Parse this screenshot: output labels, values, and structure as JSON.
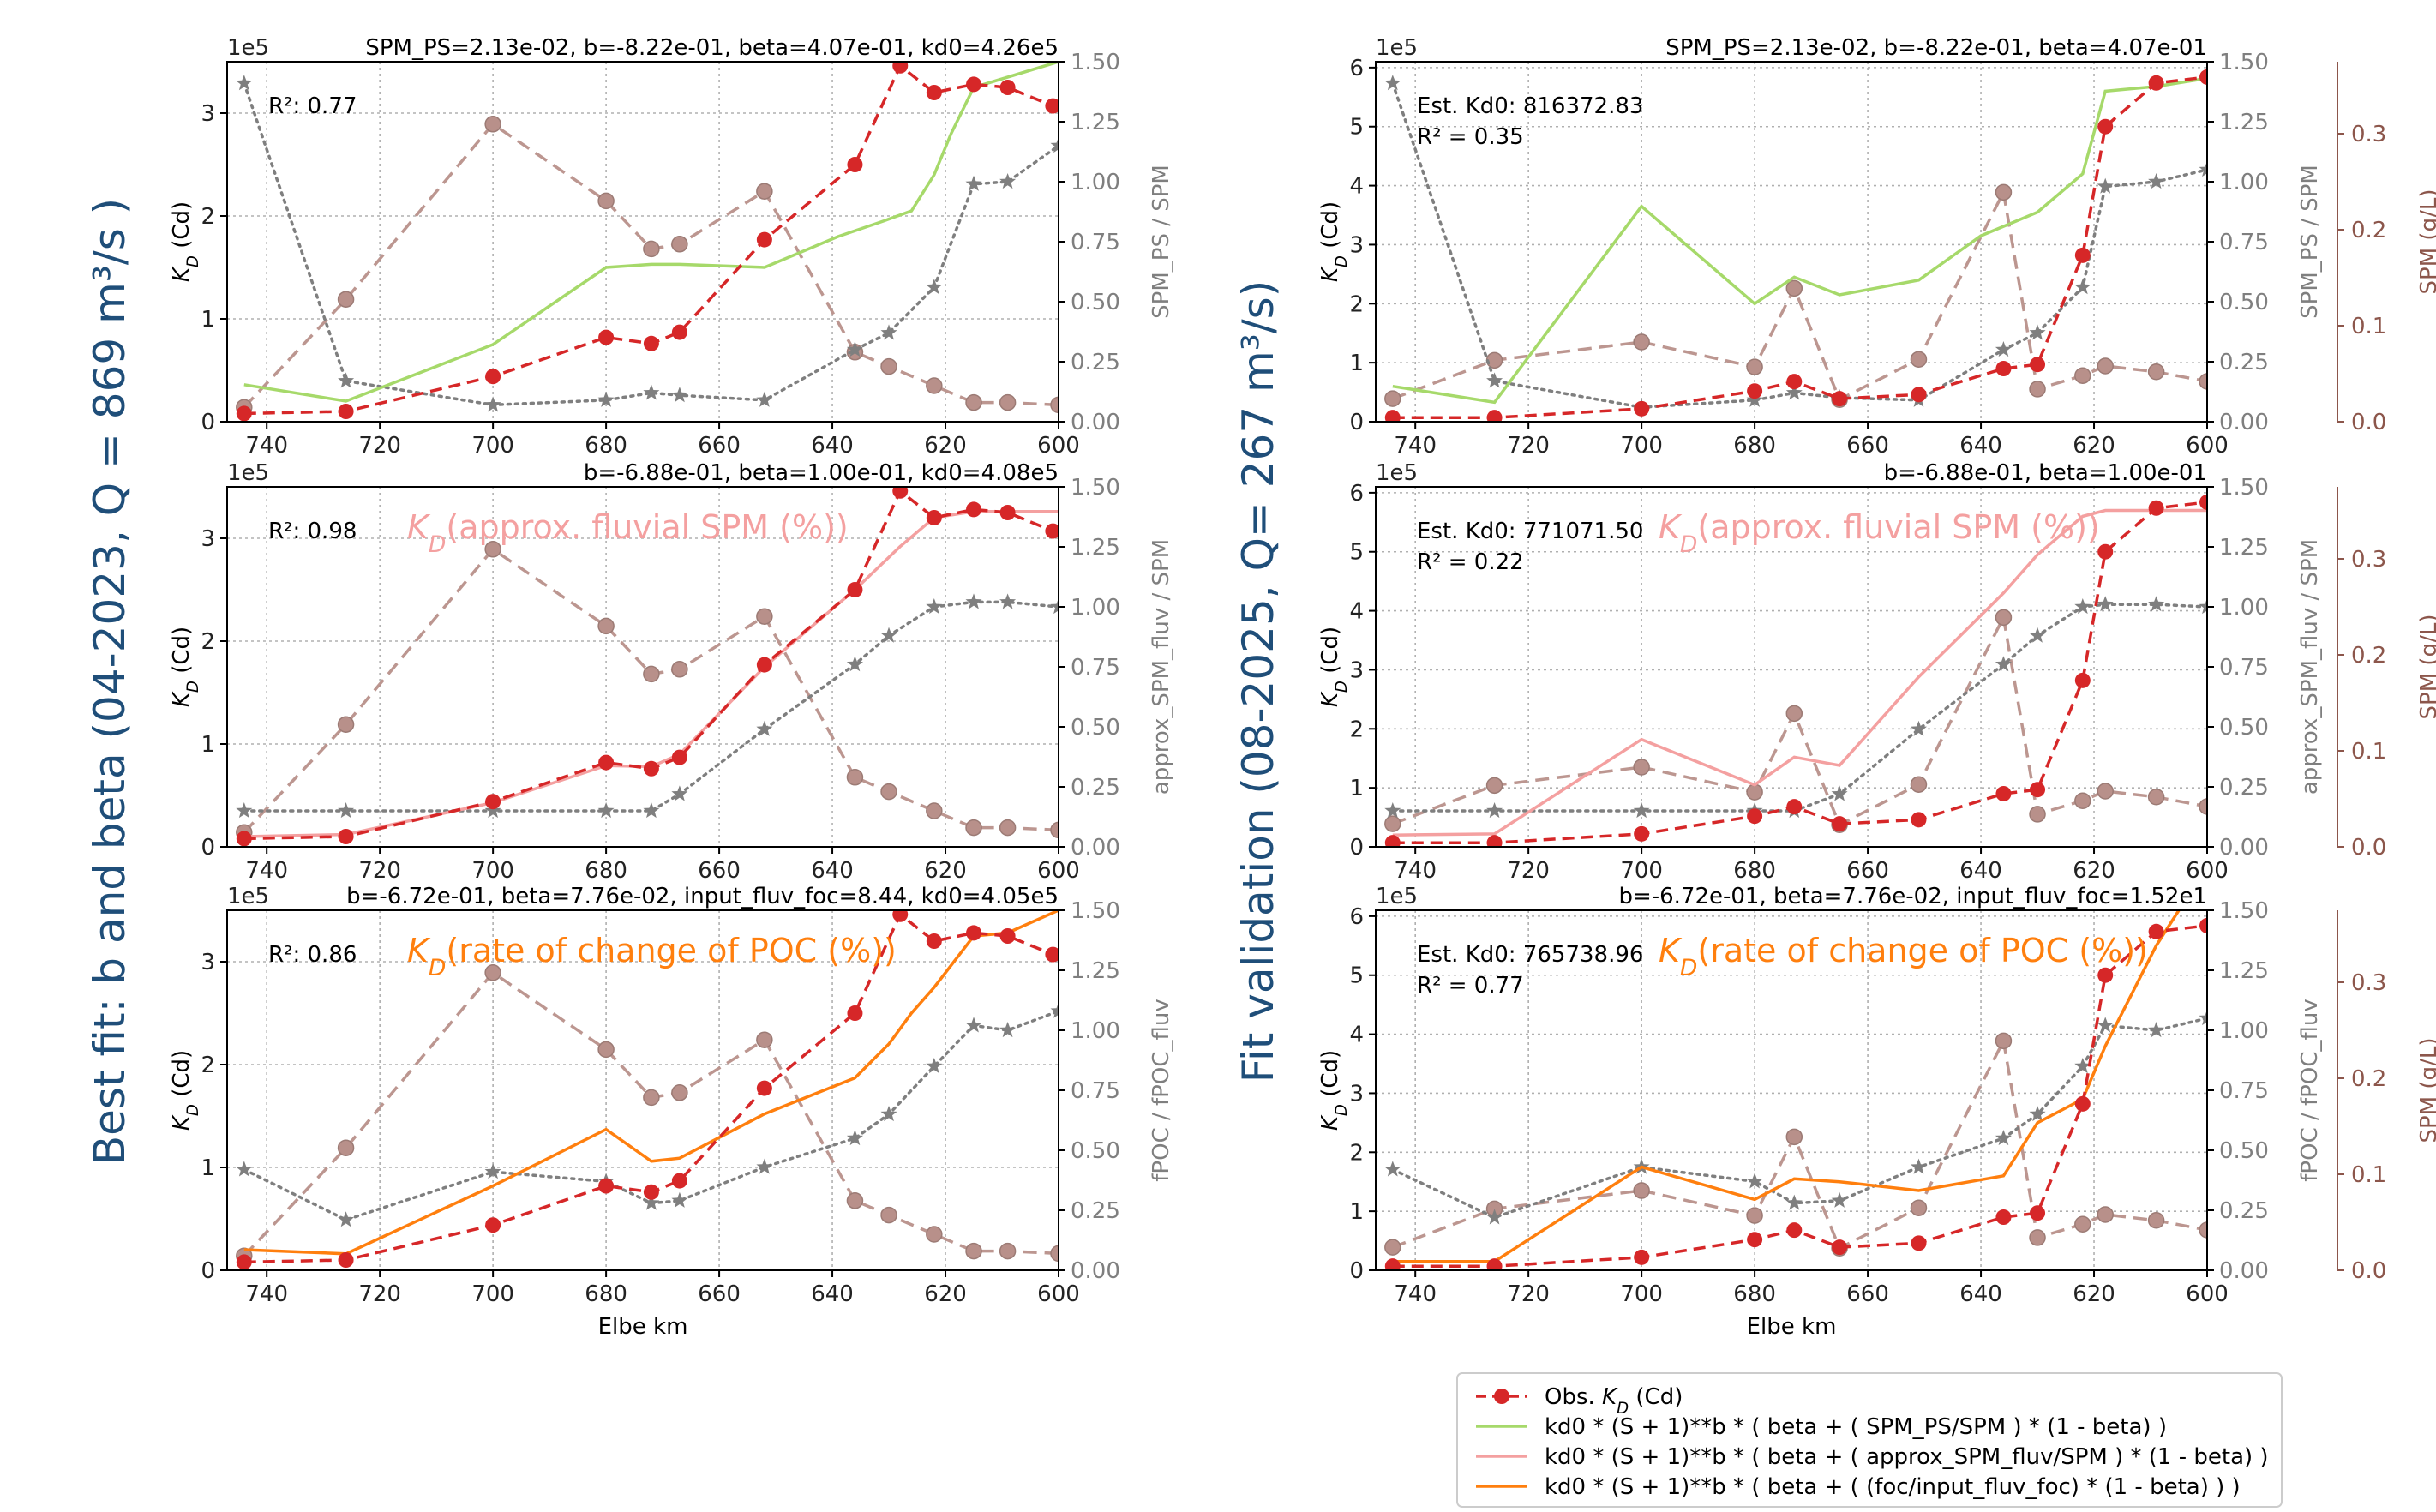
{
  "row_titles": {
    "left": "Best fit: b and beta (04-2023, Q = 869 m³/s )",
    "right": "Fit validation (08-2025, Q= 267 m³/s)"
  },
  "colors": {
    "obs": "#d62728",
    "ps": "#a6d96a",
    "fluv": "#f4a0a0",
    "poc": "#ff7f0e",
    "ratio": "#7f7f7f",
    "spm": "#b8908a",
    "spm_axis": "#8c564b"
  },
  "legend": {
    "entries": [
      {
        "key": "obs",
        "label": "Obs. K_D (Cd)"
      },
      {
        "key": "ps",
        "label": "kd0 * (S + 1)**b * ( beta + ( SPM_PS/SPM ) * (1 - beta) )"
      },
      {
        "key": "fluv",
        "label": "kd0 * (S + 1)**b * ( beta + ( approx_SPM_fluv/SPM ) * (1 - beta) )"
      },
      {
        "key": "poc",
        "label": "kd0 * (S + 1)**b * ( beta + ( (foc/input_fluv_foc) * (1 - beta) ) )"
      }
    ]
  },
  "chart_data": [
    {
      "id": "l1",
      "type": "line",
      "col": 0,
      "row": 0,
      "title": "SPM_PS=2.13e-02, b=-8.22e-01, beta=4.07e-01, kd0=4.26e5",
      "annotation": "R²: 0.77",
      "overlay": "",
      "xlabel": "",
      "ylabel": "K_D (Cd)",
      "y_multiplier": "1e5",
      "y2label": "SPM_PS / SPM",
      "y3label": "",
      "xlim": [
        747,
        600
      ],
      "ylim": [
        0,
        3.5
      ],
      "y2lim": [
        0,
        1.5
      ],
      "y3lim": null,
      "x_ticks": [
        740,
        720,
        700,
        680,
        660,
        640,
        620,
        600
      ],
      "y_ticks": [
        0,
        1,
        2,
        3
      ],
      "y2_ticks": [
        "0.00",
        "0.25",
        "0.50",
        "0.75",
        "1.00",
        "1.25",
        "1.50"
      ],
      "y3_ticks": [],
      "obs": {
        "x": [
          744,
          726,
          700,
          680,
          672,
          667,
          652,
          636,
          628,
          622,
          615,
          609,
          601
        ],
        "y": [
          0.08,
          0.1,
          0.44,
          0.82,
          0.76,
          0.87,
          1.77,
          2.5,
          3.46,
          3.2,
          3.28,
          3.25,
          3.07
        ]
      },
      "model": {
        "key": "ps",
        "x": [
          744,
          726,
          700,
          680,
          672,
          667,
          652,
          639,
          631,
          626,
          622,
          619,
          615,
          600
        ],
        "y": [
          0.36,
          0.2,
          0.75,
          1.5,
          1.53,
          1.53,
          1.5,
          1.8,
          1.95,
          2.05,
          2.4,
          2.8,
          3.25,
          3.5
        ]
      },
      "ratio": {
        "x": [
          744,
          726,
          700,
          680,
          672,
          667,
          652,
          636,
          630,
          622,
          615,
          609,
          600
        ],
        "y": [
          1.41,
          0.17,
          0.07,
          0.09,
          0.12,
          0.11,
          0.09,
          0.3,
          0.37,
          0.56,
          0.99,
          1.0,
          1.15
        ]
      },
      "spm": {
        "x": [
          744,
          726,
          700,
          680,
          672,
          667,
          652,
          636,
          630,
          622,
          615,
          609,
          600
        ],
        "y": [
          0.06,
          0.51,
          1.24,
          0.92,
          0.72,
          0.74,
          0.96,
          0.29,
          0.23,
          0.15,
          0.08,
          0.08,
          0.07
        ]
      }
    },
    {
      "id": "l2",
      "type": "line",
      "col": 0,
      "row": 1,
      "title": "b=-6.88e-01, beta=1.00e-01, kd0=4.08e5",
      "annotation": "R²: 0.98",
      "overlay": "K_D(approx. fluvial SPM (%))",
      "xlabel": "",
      "ylabel": "K_D (Cd)",
      "y_multiplier": "1e5",
      "y2label": "approx_SPM_fluv / SPM",
      "y3label": "",
      "xlim": [
        747,
        600
      ],
      "ylim": [
        0,
        3.5
      ],
      "y2lim": [
        0,
        1.5
      ],
      "y3lim": null,
      "x_ticks": [
        740,
        720,
        700,
        680,
        660,
        640,
        620,
        600
      ],
      "y_ticks": [
        0,
        1,
        2,
        3
      ],
      "y2_ticks": [
        "0.00",
        "0.25",
        "0.50",
        "0.75",
        "1.00",
        "1.25",
        "1.50"
      ],
      "y3_ticks": [],
      "obs": {
        "x": [
          744,
          726,
          700,
          680,
          672,
          667,
          652,
          636,
          628,
          622,
          615,
          609,
          601
        ],
        "y": [
          0.08,
          0.1,
          0.44,
          0.82,
          0.76,
          0.87,
          1.77,
          2.5,
          3.46,
          3.2,
          3.28,
          3.25,
          3.07
        ]
      },
      "model": {
        "key": "fluv",
        "x": [
          744,
          726,
          700,
          680,
          672,
          667,
          652,
          636,
          628,
          622,
          615,
          609,
          600
        ],
        "y": [
          0.1,
          0.12,
          0.43,
          0.79,
          0.78,
          0.9,
          1.75,
          2.5,
          2.92,
          3.2,
          3.26,
          3.26,
          3.26
        ]
      },
      "ratio": {
        "x": [
          744,
          726,
          700,
          680,
          672,
          667,
          652,
          636,
          630,
          622,
          615,
          609,
          600
        ],
        "y": [
          0.15,
          0.15,
          0.15,
          0.15,
          0.15,
          0.22,
          0.49,
          0.76,
          0.88,
          1.0,
          1.02,
          1.02,
          1.0
        ]
      },
      "spm": {
        "x": [
          744,
          726,
          700,
          680,
          672,
          667,
          652,
          636,
          630,
          622,
          615,
          609,
          600
        ],
        "y": [
          0.06,
          0.51,
          1.24,
          0.92,
          0.72,
          0.74,
          0.96,
          0.29,
          0.23,
          0.15,
          0.08,
          0.08,
          0.07
        ]
      }
    },
    {
      "id": "l3",
      "type": "line",
      "col": 0,
      "row": 2,
      "title": "b=-6.72e-01, beta=7.76e-02, input_fluv_foc=8.44, kd0=4.05e5",
      "annotation": "R²: 0.86",
      "overlay": "K_D(rate of change of POC (%))",
      "xlabel": "Elbe km",
      "ylabel": "K_D (Cd)",
      "y_multiplier": "1e5",
      "y2label": "fPOC / fPOC_fluv",
      "y3label": "",
      "xlim": [
        747,
        600
      ],
      "ylim": [
        0,
        3.5
      ],
      "y2lim": [
        0,
        1.5
      ],
      "y3lim": null,
      "x_ticks": [
        740,
        720,
        700,
        680,
        660,
        640,
        620,
        600
      ],
      "y_ticks": [
        0,
        1,
        2,
        3
      ],
      "y2_ticks": [
        "0.00",
        "0.25",
        "0.50",
        "0.75",
        "1.00",
        "1.25",
        "1.50"
      ],
      "y3_ticks": [],
      "obs": {
        "x": [
          744,
          726,
          700,
          680,
          672,
          667,
          652,
          636,
          628,
          622,
          615,
          609,
          601
        ],
        "y": [
          0.08,
          0.1,
          0.44,
          0.82,
          0.76,
          0.87,
          1.77,
          2.5,
          3.46,
          3.2,
          3.28,
          3.25,
          3.07
        ]
      },
      "model": {
        "key": "poc",
        "x": [
          744,
          726,
          700,
          680,
          672,
          667,
          652,
          636,
          630,
          626,
          622,
          615,
          609,
          600
        ],
        "y": [
          0.2,
          0.16,
          0.82,
          1.37,
          1.06,
          1.09,
          1.52,
          1.87,
          2.2,
          2.5,
          2.75,
          3.25,
          3.28,
          3.5
        ]
      },
      "ratio": {
        "x": [
          744,
          726,
          700,
          680,
          672,
          667,
          652,
          636,
          630,
          622,
          615,
          609,
          600
        ],
        "y": [
          0.42,
          0.21,
          0.41,
          0.37,
          0.28,
          0.29,
          0.43,
          0.55,
          0.65,
          0.85,
          1.02,
          1.0,
          1.08
        ]
      },
      "spm": {
        "x": [
          744,
          726,
          700,
          680,
          672,
          667,
          652,
          636,
          630,
          622,
          615,
          609,
          600
        ],
        "y": [
          0.06,
          0.51,
          1.24,
          0.92,
          0.72,
          0.74,
          0.96,
          0.29,
          0.23,
          0.15,
          0.08,
          0.08,
          0.07
        ]
      }
    },
    {
      "id": "r1",
      "type": "line",
      "col": 1,
      "row": 0,
      "title": "SPM_PS=2.13e-02, b=-8.22e-01, beta=4.07e-01",
      "annotation": "Est. Kd0: 816372.83\nR² = 0.35",
      "overlay": "",
      "xlabel": "",
      "ylabel": "K_D (Cd)",
      "y_multiplier": "1e5",
      "y2label": "SPM_PS / SPM",
      "y3label": "SPM (g/L)",
      "xlim": [
        747,
        600
      ],
      "ylim": [
        0,
        6.1
      ],
      "y2lim": [
        0,
        1.5
      ],
      "y3lim": [
        0,
        0.375
      ],
      "x_ticks": [
        740,
        720,
        700,
        680,
        660,
        640,
        620,
        600
      ],
      "y_ticks": [
        0,
        1,
        2,
        3,
        4,
        5,
        6
      ],
      "y2_ticks": [
        "0.00",
        "0.25",
        "0.50",
        "0.75",
        "1.00",
        "1.25",
        "1.50"
      ],
      "y3_ticks": [
        "0.0",
        "0.1",
        "0.2",
        "0.3"
      ],
      "obs": {
        "x": [
          744,
          726,
          700,
          680,
          673,
          665,
          651,
          636,
          630,
          622,
          618,
          609,
          600
        ],
        "y": [
          0.07,
          0.07,
          0.22,
          0.52,
          0.68,
          0.39,
          0.46,
          0.9,
          0.97,
          2.82,
          5.0,
          5.74,
          5.84
        ]
      },
      "model": {
        "key": "ps",
        "x": [
          744,
          726,
          700,
          680,
          673,
          665,
          651,
          640,
          630,
          622,
          618,
          609,
          600
        ],
        "y": [
          0.6,
          0.33,
          3.65,
          2.0,
          2.45,
          2.15,
          2.4,
          3.15,
          3.55,
          4.2,
          5.6,
          5.68,
          5.82
        ]
      },
      "ratio": {
        "x": [
          744,
          726,
          700,
          680,
          673,
          665,
          651,
          636,
          630,
          622,
          618,
          609,
          600
        ],
        "y": [
          1.41,
          0.17,
          0.06,
          0.09,
          0.12,
          0.1,
          0.09,
          0.3,
          0.37,
          0.56,
          0.98,
          1.0,
          1.05
        ]
      },
      "spm": {
        "x": [
          744,
          726,
          700,
          680,
          673,
          665,
          651,
          636,
          630,
          622,
          618,
          609,
          600
        ],
        "y": [
          0.024,
          0.064,
          0.083,
          0.057,
          0.139,
          0.023,
          0.065,
          0.239,
          0.034,
          0.048,
          0.058,
          0.052,
          0.042
        ]
      }
    },
    {
      "id": "r2",
      "type": "line",
      "col": 1,
      "row": 1,
      "title": "b=-6.88e-01, beta=1.00e-01",
      "annotation": "Est. Kd0: 771071.50\nR² = 0.22",
      "overlay": "K_D(approx. fluvial SPM (%))",
      "xlabel": "",
      "ylabel": "K_D (Cd)",
      "y_multiplier": "1e5",
      "y2label": "approx_SPM_fluv / SPM",
      "y3label": "SPM (g/L)",
      "xlim": [
        747,
        600
      ],
      "ylim": [
        0,
        6.1
      ],
      "y2lim": [
        0,
        1.5
      ],
      "y3lim": [
        0,
        0.375
      ],
      "x_ticks": [
        740,
        720,
        700,
        680,
        660,
        640,
        620,
        600
      ],
      "y_ticks": [
        0,
        1,
        2,
        3,
        4,
        5,
        6
      ],
      "y2_ticks": [
        "0.00",
        "0.25",
        "0.50",
        "0.75",
        "1.00",
        "1.25",
        "1.50"
      ],
      "y3_ticks": [
        "0.0",
        "0.1",
        "0.2",
        "0.3"
      ],
      "obs": {
        "x": [
          744,
          726,
          700,
          680,
          673,
          665,
          651,
          636,
          630,
          622,
          618,
          609,
          600
        ],
        "y": [
          0.07,
          0.07,
          0.22,
          0.52,
          0.68,
          0.39,
          0.46,
          0.9,
          0.97,
          2.82,
          5.0,
          5.74,
          5.84
        ]
      },
      "model": {
        "key": "fluv",
        "x": [
          744,
          726,
          700,
          680,
          673,
          665,
          651,
          636,
          630,
          622,
          618,
          609,
          600
        ],
        "y": [
          0.2,
          0.22,
          1.82,
          1.05,
          1.52,
          1.38,
          2.88,
          4.3,
          4.95,
          5.6,
          5.7,
          5.7,
          5.7
        ]
      },
      "ratio": {
        "x": [
          744,
          726,
          700,
          680,
          673,
          665,
          651,
          636,
          630,
          622,
          618,
          609,
          600
        ],
        "y": [
          0.15,
          0.15,
          0.15,
          0.15,
          0.15,
          0.22,
          0.49,
          0.76,
          0.88,
          1.0,
          1.01,
          1.01,
          1.0
        ]
      },
      "spm": {
        "x": [
          744,
          726,
          700,
          680,
          673,
          665,
          651,
          636,
          630,
          622,
          618,
          609,
          600
        ],
        "y": [
          0.024,
          0.064,
          0.083,
          0.057,
          0.139,
          0.023,
          0.065,
          0.239,
          0.034,
          0.048,
          0.058,
          0.052,
          0.042
        ]
      }
    },
    {
      "id": "r3",
      "type": "line",
      "col": 1,
      "row": 2,
      "title": "b=-6.72e-01, beta=7.76e-02, input_fluv_foc=1.52e1",
      "annotation": "Est. Kd0: 765738.96\nR² = 0.77",
      "overlay": "K_D(rate of change of POC (%))",
      "xlabel": "Elbe km",
      "ylabel": "K_D (Cd)",
      "y_multiplier": "1e5",
      "y2label": "fPOC / fPOC_fluv",
      "y3label": "SPM (g/L)",
      "xlim": [
        747,
        600
      ],
      "ylim": [
        0,
        6.1
      ],
      "y2lim": [
        0,
        1.5
      ],
      "y3lim": [
        0,
        0.375
      ],
      "x_ticks": [
        740,
        720,
        700,
        680,
        660,
        640,
        620,
        600
      ],
      "y_ticks": [
        0,
        1,
        2,
        3,
        4,
        5,
        6
      ],
      "y2_ticks": [
        "0.00",
        "0.25",
        "0.50",
        "0.75",
        "1.00",
        "1.25",
        "1.50"
      ],
      "y3_ticks": [
        "0.0",
        "0.1",
        "0.2",
        "0.3"
      ],
      "obs": {
        "x": [
          744,
          726,
          700,
          680,
          673,
          665,
          651,
          636,
          630,
          622,
          618,
          609,
          600
        ],
        "y": [
          0.07,
          0.07,
          0.22,
          0.52,
          0.68,
          0.39,
          0.46,
          0.9,
          0.97,
          2.82,
          5.0,
          5.74,
          5.84
        ]
      },
      "model": {
        "key": "poc",
        "x": [
          744,
          726,
          700,
          680,
          673,
          665,
          651,
          636,
          630,
          622,
          618,
          609,
          605
        ],
        "y": [
          0.15,
          0.15,
          1.75,
          1.2,
          1.55,
          1.5,
          1.35,
          1.6,
          2.5,
          2.9,
          3.8,
          5.5,
          6.1
        ]
      },
      "ratio": {
        "x": [
          744,
          726,
          700,
          680,
          673,
          665,
          651,
          636,
          630,
          622,
          618,
          609,
          600
        ],
        "y": [
          0.42,
          0.22,
          0.43,
          0.37,
          0.28,
          0.29,
          0.43,
          0.55,
          0.65,
          0.85,
          1.02,
          1.0,
          1.05
        ]
      },
      "spm": {
        "x": [
          744,
          726,
          700,
          680,
          673,
          665,
          651,
          636,
          630,
          622,
          618,
          609,
          600
        ],
        "y": [
          0.024,
          0.064,
          0.083,
          0.057,
          0.139,
          0.023,
          0.065,
          0.239,
          0.034,
          0.048,
          0.058,
          0.052,
          0.042
        ]
      }
    }
  ]
}
